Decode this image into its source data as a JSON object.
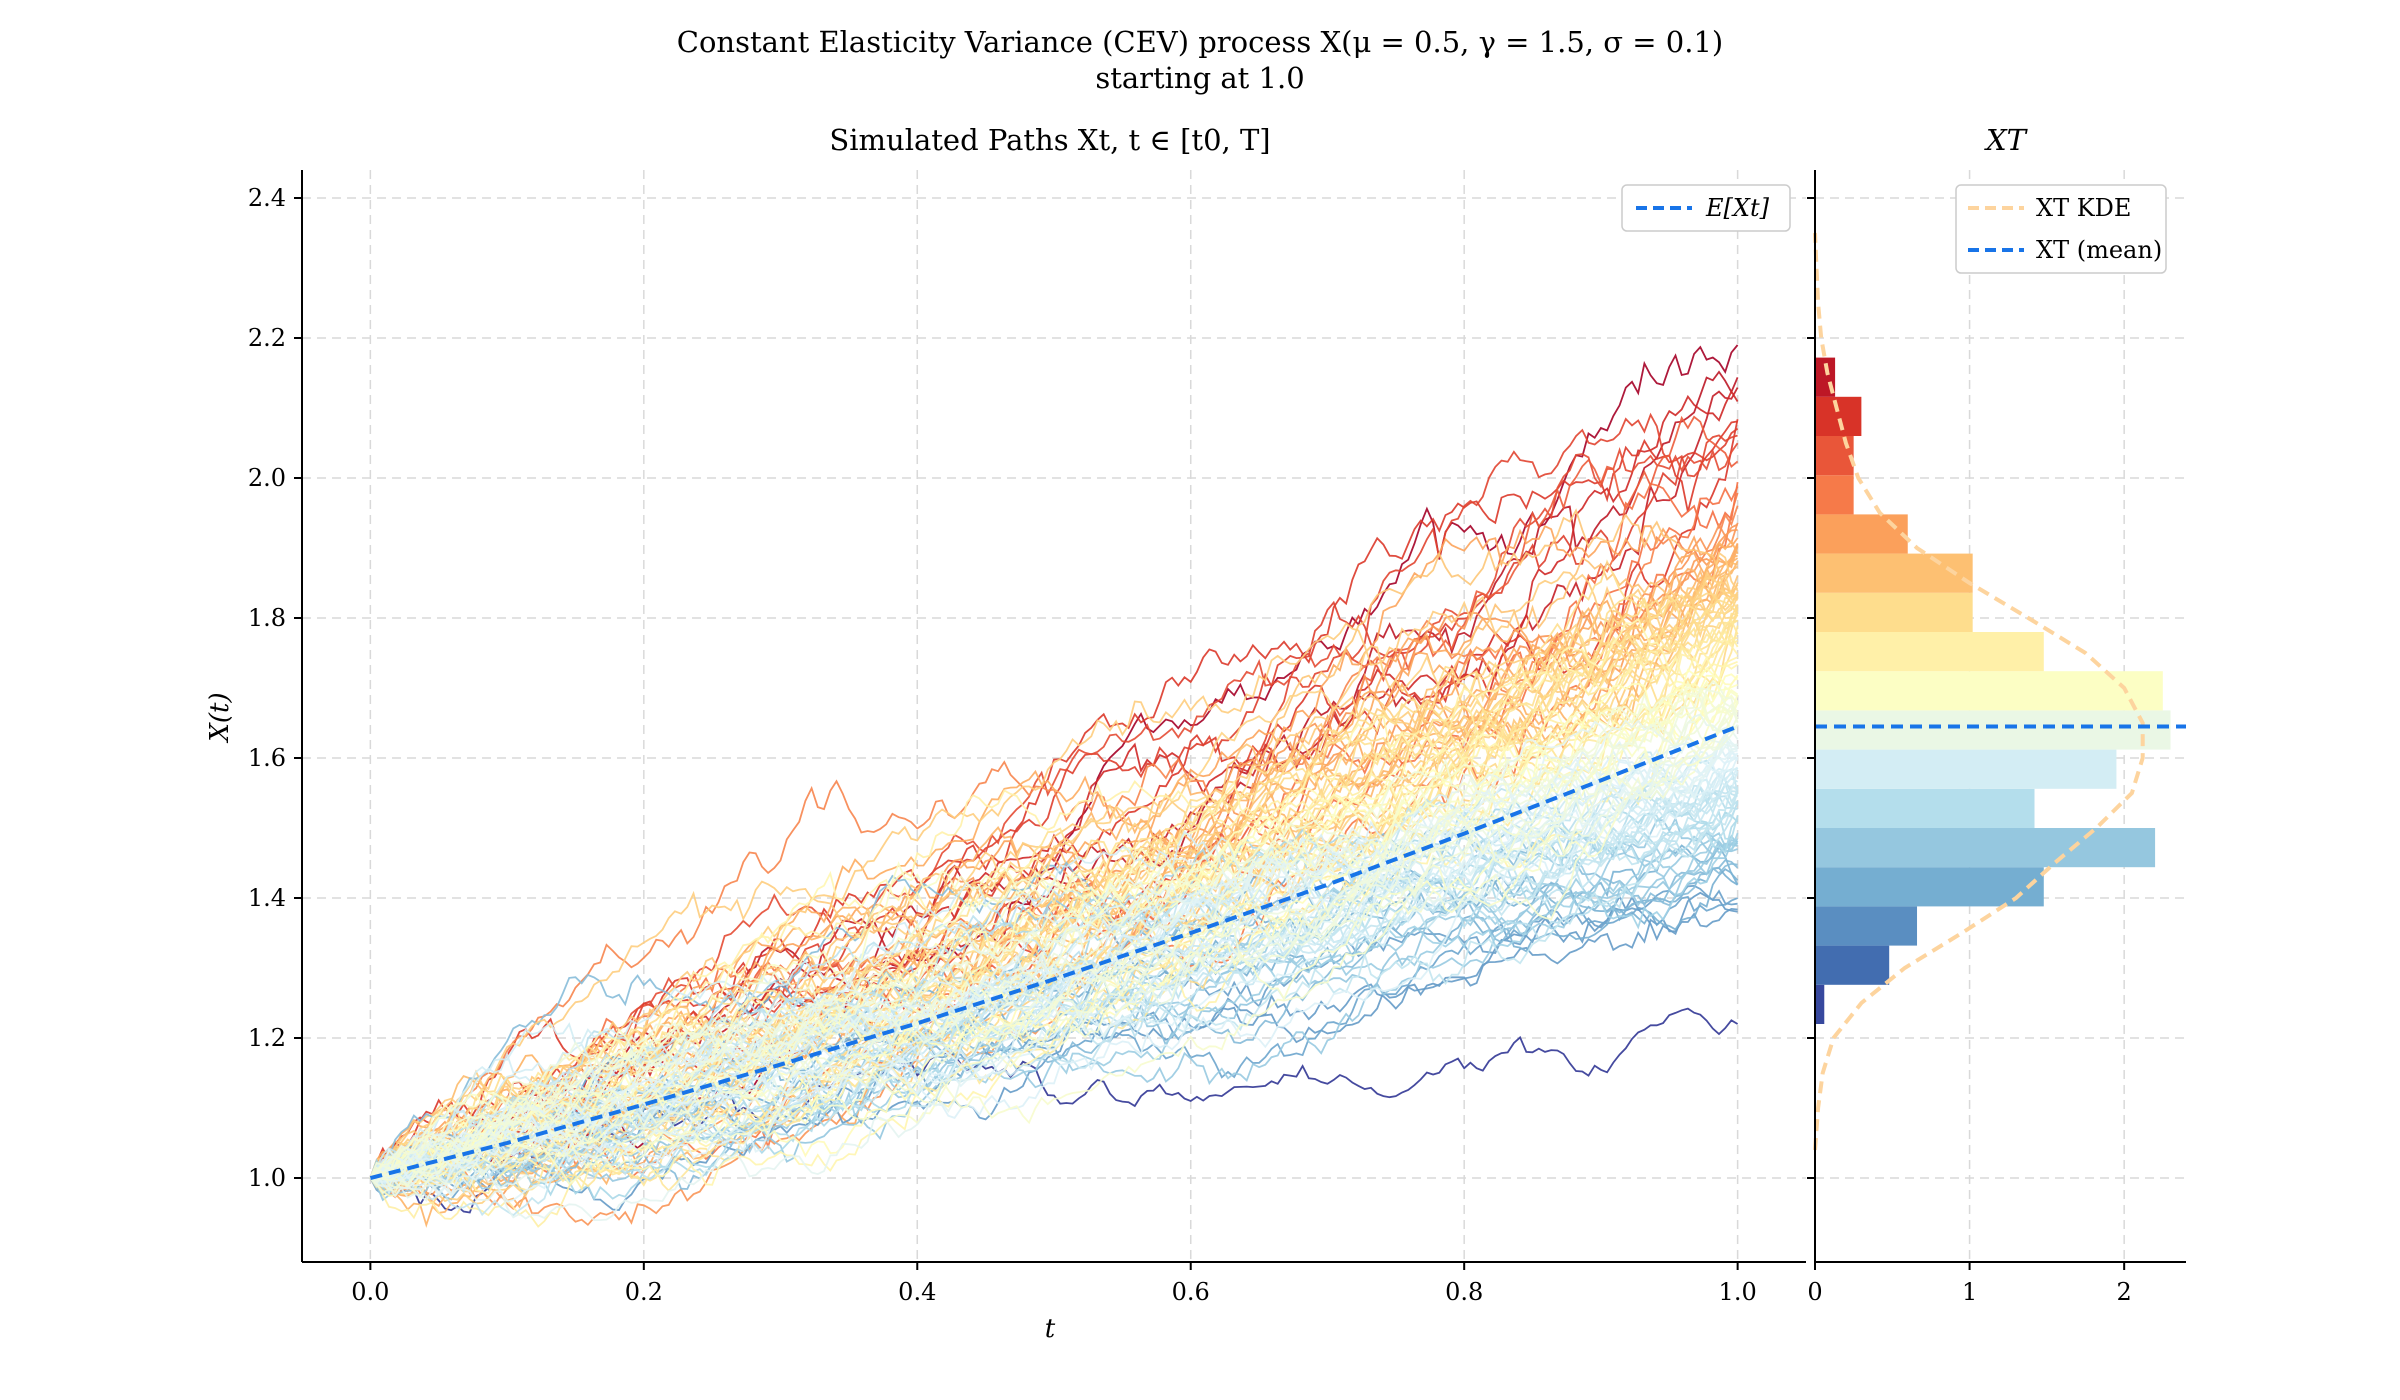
{
  "figure": {
    "title_line1": "Constant Elasticity Variance (CEV) process X(μ = 0.5, γ = 1.5, σ = 0.1)",
    "title_line2": "starting at 1.0"
  },
  "chart_data": [
    {
      "type": "line",
      "title": "Simulated Paths Xt, t ∈ [t0, T]",
      "xlabel": "t",
      "ylabel": "X(t)",
      "xlim": [
        -0.05,
        1.05
      ],
      "ylim": [
        0.88,
        2.44
      ],
      "x_ticks": [
        0.0,
        0.2,
        0.4,
        0.6,
        0.8,
        1.0
      ],
      "x_tick_labels": [
        "0.0",
        "0.2",
        "0.4",
        "0.6",
        "0.8",
        "1.0"
      ],
      "y_ticks": [
        1.0,
        1.2,
        1.4,
        1.6,
        1.8,
        2.0,
        2.2,
        2.4
      ],
      "y_tick_labels": [
        "1.0",
        "1.2",
        "1.4",
        "1.6",
        "1.8",
        "2.0",
        "2.2",
        "2.4"
      ],
      "grid": true,
      "legend_position": "top-right",
      "legend": [
        "E[Xt]"
      ],
      "start_value": 1.0,
      "paths_colormap": "RdYlBu_r (colored by terminal value)",
      "colors": {
        "mean": "#1874e8",
        "kde": "#fdd49e",
        "grid": "#d9d9d9"
      },
      "series": [
        {
          "name": "E[Xt]",
          "style": "dashed",
          "x": [
            0.0,
            0.1,
            0.2,
            0.3,
            0.4,
            0.5,
            0.6,
            0.7,
            0.8,
            0.9,
            1.0
          ],
          "y": [
            1.0,
            1.05,
            1.105,
            1.162,
            1.221,
            1.284,
            1.35,
            1.419,
            1.492,
            1.568,
            1.645
          ]
        }
      ],
      "path_endpoints_approx": {
        "min": 1.22,
        "max": 2.19
      }
    },
    {
      "type": "bar",
      "orientation": "horizontal",
      "title": "XT",
      "xlim": [
        0,
        2.4
      ],
      "x_ticks": [
        0,
        1,
        2
      ],
      "x_tick_labels": [
        "0",
        "1",
        "2"
      ],
      "legend_position": "top-right",
      "legend": [
        "XT KDE",
        "XT (mean)"
      ],
      "mean": 1.645,
      "bins": [
        {
          "y0": 1.22,
          "y1": 1.276,
          "density": 0.06
        },
        {
          "y0": 1.276,
          "y1": 1.332,
          "density": 0.48
        },
        {
          "y0": 1.332,
          "y1": 1.388,
          "density": 0.66
        },
        {
          "y0": 1.388,
          "y1": 1.444,
          "density": 1.48
        },
        {
          "y0": 1.444,
          "y1": 1.5,
          "density": 2.2
        },
        {
          "y0": 1.5,
          "y1": 1.556,
          "density": 1.42
        },
        {
          "y0": 1.556,
          "y1": 1.612,
          "density": 1.95
        },
        {
          "y0": 1.612,
          "y1": 1.668,
          "density": 2.3
        },
        {
          "y0": 1.668,
          "y1": 1.724,
          "density": 2.25
        },
        {
          "y0": 1.724,
          "y1": 1.78,
          "density": 1.48
        },
        {
          "y0": 1.78,
          "y1": 1.836,
          "density": 1.02
        },
        {
          "y0": 1.836,
          "y1": 1.892,
          "density": 1.02
        },
        {
          "y0": 1.892,
          "y1": 1.948,
          "density": 0.6
        },
        {
          "y0": 1.948,
          "y1": 2.004,
          "density": 0.25
        },
        {
          "y0": 2.004,
          "y1": 2.06,
          "density": 0.25
        },
        {
          "y0": 2.06,
          "y1": 2.116,
          "density": 0.3
        },
        {
          "y0": 2.116,
          "y1": 2.172,
          "density": 0.13
        }
      ],
      "kde": {
        "y": [
          1.04,
          1.1,
          1.15,
          1.2,
          1.25,
          1.3,
          1.35,
          1.4,
          1.45,
          1.5,
          1.55,
          1.6,
          1.65,
          1.7,
          1.75,
          1.8,
          1.85,
          1.9,
          1.95,
          2.0,
          2.05,
          2.1,
          2.15,
          2.2,
          2.25,
          2.3,
          2.35
        ],
        "density": [
          0.0,
          0.02,
          0.05,
          0.12,
          0.3,
          0.58,
          0.95,
          1.3,
          1.55,
          1.82,
          2.05,
          2.12,
          2.12,
          2.0,
          1.75,
          1.38,
          1.0,
          0.66,
          0.42,
          0.28,
          0.2,
          0.14,
          0.08,
          0.04,
          0.02,
          0.01,
          0.0
        ]
      }
    }
  ]
}
